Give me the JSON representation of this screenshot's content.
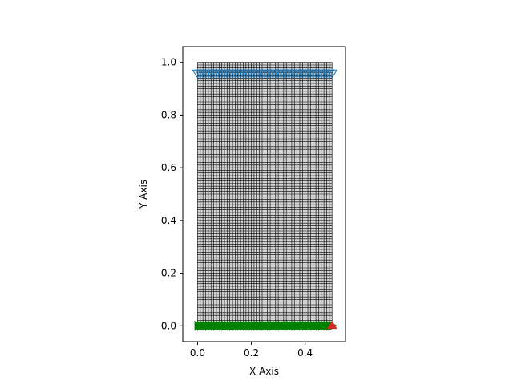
{
  "chart_data": {
    "type": "scatter",
    "title": "",
    "xlabel": "X Axis",
    "ylabel": "Y Axis",
    "xlim": [
      -0.055,
      0.55
    ],
    "ylim": [
      -0.06,
      1.06
    ],
    "aspect": "equal",
    "grid": false,
    "legend": "none",
    "x_ticks": [
      {
        "value": 0.0,
        "label": "0.0"
      },
      {
        "value": 0.2,
        "label": "0.2"
      },
      {
        "value": 0.4,
        "label": "0.4"
      }
    ],
    "y_ticks": [
      {
        "value": 0.0,
        "label": "0.0"
      },
      {
        "value": 0.2,
        "label": "0.2"
      },
      {
        "value": 0.4,
        "label": "0.4"
      },
      {
        "value": 0.6,
        "label": "0.6"
      },
      {
        "value": 0.8,
        "label": "0.8"
      },
      {
        "value": 1.0,
        "label": "1.0"
      }
    ],
    "mesh": {
      "x_range": [
        0.0,
        0.5
      ],
      "y_range": [
        0.0,
        1.0
      ],
      "nx": 50,
      "ny": 100,
      "face_color": "#d3d3d3",
      "edge_color": "#000000"
    },
    "series": [
      {
        "marker": "v",
        "color": "#1f77b4",
        "x_range": [
          0.0,
          0.5
        ],
        "y": 0.96,
        "count": 51,
        "description": "top row markers"
      },
      {
        "marker": ">",
        "color": "#008000",
        "x_range": [
          0.0,
          0.5
        ],
        "y": 0.0,
        "count": 51,
        "description": "bottom row markers"
      },
      {
        "marker": "^",
        "color": "#d62728",
        "x": 0.5,
        "y": 0.0,
        "description": "corner marker"
      }
    ]
  }
}
